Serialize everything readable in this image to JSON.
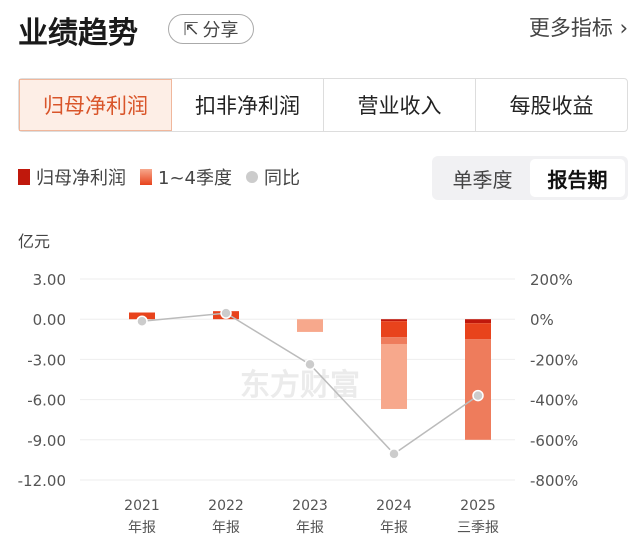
{
  "header": {
    "title": "业绩趋势",
    "share": "分享",
    "more": "更多指标 ›"
  },
  "tabs": [
    "归母净利润",
    "扣非净利润",
    "营业收入",
    "每股收益"
  ],
  "legend": [
    "归母净利润",
    "1~4季度",
    "同比"
  ],
  "period": {
    "options": [
      "单季度",
      "报告期"
    ],
    "selected": "报告期"
  },
  "unit": "亿元",
  "watermark": "东方财富",
  "colors": {
    "accent": "#d9552a",
    "dark": "#c0180c",
    "q2": "#e8431c",
    "q3": "#ee7c5c",
    "q4": "#f7a88c",
    "line": "#bbbbbb"
  },
  "chart_data": {
    "type": "bar+line",
    "categories": [
      "2021\n年报",
      "2022\n年报",
      "2023\n年报",
      "2024\n年报",
      "2025\n三季报"
    ],
    "cat_top": [
      "2021",
      "2022",
      "2023",
      "2024",
      "2025"
    ],
    "cat_bottom": [
      "年报",
      "年报",
      "年报",
      "年报",
      "三季报"
    ],
    "stack_segments": [
      [
        0.5
      ],
      [
        0.6
      ],
      [
        -0.95
      ],
      [
        -0.15,
        -1.2,
        -0.5,
        -4.85
      ],
      [
        -0.3,
        -1.2,
        -7.5
      ]
    ],
    "totals": [
      0.5,
      0.6,
      -0.95,
      -6.7,
      -9.0
    ],
    "yoy_pct": [
      -10,
      30,
      -225,
      -670,
      -380
    ],
    "ylim": [
      -12,
      3
    ],
    "yticks": [
      "3.00",
      "0.00",
      "-3.00",
      "-6.00",
      "-9.00",
      "-12.00"
    ],
    "y2lim": [
      -800,
      200
    ],
    "y2ticks": [
      "200%",
      "0%",
      "-200%",
      "-400%",
      "-600%",
      "-800%"
    ]
  }
}
